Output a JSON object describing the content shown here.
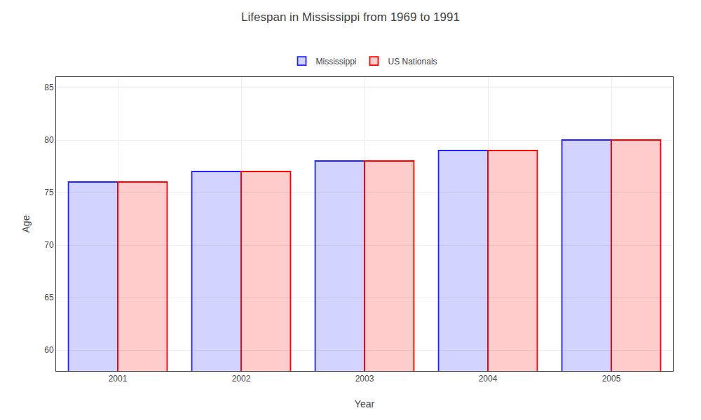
{
  "chart_data": {
    "type": "bar",
    "title": "Lifespan in Mississippi from 1969 to 1991",
    "xlabel": "Year",
    "ylabel": "Age",
    "categories": [
      "2001",
      "2002",
      "2003",
      "2004",
      "2005"
    ],
    "series": [
      {
        "name": "Mississippi",
        "color": "#2222ff",
        "values": [
          76.0,
          77.0,
          78.0,
          79.0,
          80.0
        ]
      },
      {
        "name": "US Nationals",
        "color": "#ff0000",
        "values": [
          76.0,
          77.0,
          78.0,
          79.0,
          80.0
        ]
      }
    ],
    "ylim": [
      58,
      86
    ],
    "yticks": [
      60,
      65,
      70,
      75,
      80,
      85
    ],
    "grid": true,
    "legend": "top"
  }
}
